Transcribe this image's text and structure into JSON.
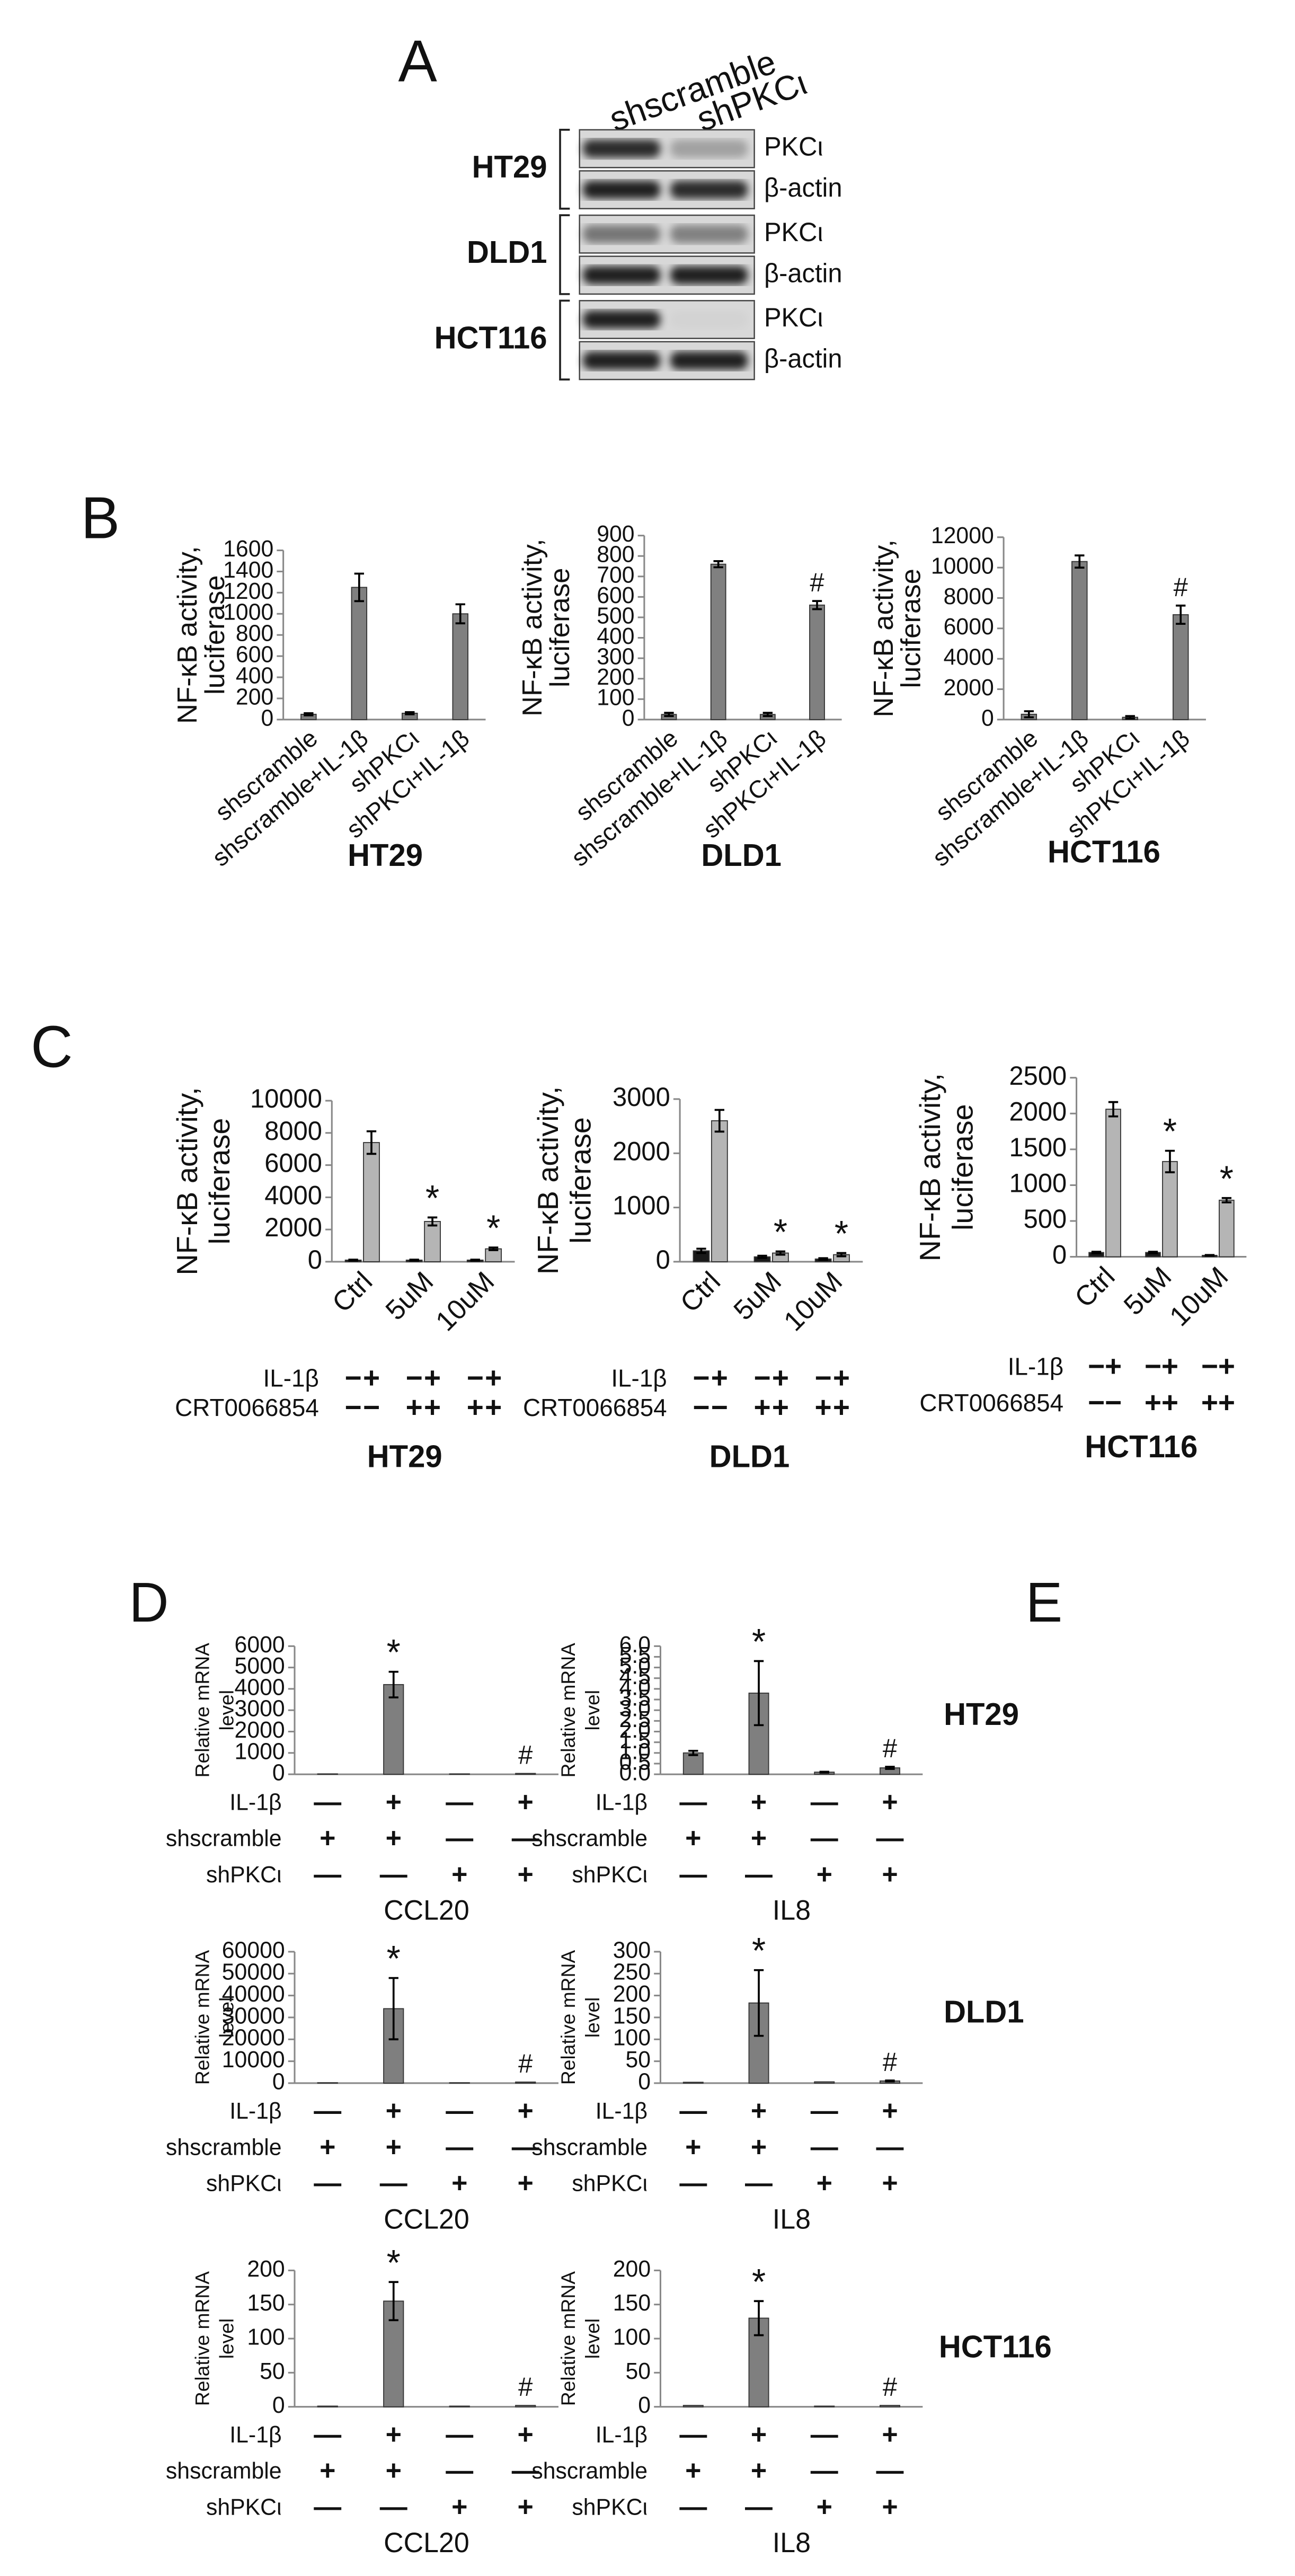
{
  "panel_labels": [
    "A",
    "B",
    "C",
    "D",
    "E"
  ],
  "blot": {
    "lanes": [
      "shscramble",
      "shPKCι"
    ],
    "cell_lines": [
      {
        "name": "HT29",
        "bands": [
          "PKCι",
          "β-actin"
        ]
      },
      {
        "name": "DLD1",
        "bands": [
          "PKCι",
          "β-actin"
        ]
      },
      {
        "name": "HCT116",
        "bands": [
          "PKCι",
          "β-actin"
        ]
      }
    ]
  },
  "panel_d_row_labels": [
    "HT29",
    "DLD1",
    "HCT116"
  ],
  "chart_data": [
    {
      "type": "bar",
      "title": "HT29",
      "y_label": [
        "NF-κB activity,",
        "luciferase"
      ],
      "categories": [
        "shscramble",
        "shscramble+IL-1β",
        "shPKCι",
        "shPKCι+IL-1β"
      ],
      "values": [
        50,
        1250,
        60,
        1000
      ],
      "errors": [
        10,
        130,
        10,
        90
      ],
      "color": "#808080",
      "ylim": [
        0,
        1600
      ],
      "yticks": [
        0,
        200,
        400,
        600,
        800,
        1000,
        1200,
        1400,
        1600
      ]
    },
    {
      "type": "bar",
      "title": "DLD1",
      "y_label": [
        "NF-κB activity,",
        "luciferase"
      ],
      "categories": [
        "shscramble",
        "shscramble+IL-1β",
        "shPKCι",
        "shPKCι+IL-1β"
      ],
      "values": [
        25,
        760,
        25,
        560
      ],
      "errors": [
        8,
        15,
        8,
        20
      ],
      "annotations": [
        null,
        null,
        null,
        "#"
      ],
      "color": "#808080",
      "ylim": [
        0,
        900
      ],
      "yticks": [
        0,
        100,
        200,
        300,
        400,
        500,
        600,
        700,
        800,
        900
      ]
    },
    {
      "type": "bar",
      "title": "HCT116",
      "y_label": [
        "NF-κB activity,",
        "luciferase"
      ],
      "categories": [
        "shscramble",
        "shscramble+IL-1β",
        "shPKCι",
        "shPKCι+IL-1β"
      ],
      "values": [
        350,
        10400,
        150,
        6900
      ],
      "errors": [
        200,
        400,
        80,
        600
      ],
      "annotations": [
        null,
        null,
        null,
        "#"
      ],
      "color": "#808080",
      "ylim": [
        0,
        12000
      ],
      "yticks": [
        0,
        2000,
        4000,
        6000,
        8000,
        10000,
        12000
      ]
    },
    {
      "type": "bar",
      "title": "HT29",
      "y_label": [
        "NF-κB activity,",
        "luciferase"
      ],
      "categories": [
        "Ctrl",
        "5uM",
        "10uM"
      ],
      "series": [
        {
          "color": "#1a1a1a",
          "values": [
            100,
            100,
            100
          ],
          "errors": [
            30,
            30,
            30
          ]
        },
        {
          "color": "#b5b5b5",
          "values": [
            7400,
            2500,
            800
          ],
          "errors": [
            700,
            250,
            80
          ],
          "annotations": [
            null,
            "*",
            "*"
          ]
        }
      ],
      "treatments": [
        {
          "label": "IL-1β",
          "marks": [
            "−",
            "+",
            "−",
            "+",
            "−",
            "+"
          ]
        },
        {
          "label": "CRT0066854",
          "marks": [
            "−",
            "−",
            "+",
            "+",
            "+",
            "+"
          ]
        }
      ],
      "ylim": [
        0,
        10000
      ],
      "yticks": [
        0,
        2000,
        4000,
        6000,
        8000,
        10000
      ]
    },
    {
      "type": "bar",
      "title": "DLD1",
      "y_label": [
        "NF-κB activity,",
        "luciferase"
      ],
      "categories": [
        "Ctrl",
        "5uM",
        "10uM"
      ],
      "series": [
        {
          "color": "#1a1a1a",
          "values": [
            200,
            90,
            50
          ],
          "errors": [
            40,
            20,
            15
          ]
        },
        {
          "color": "#b5b5b5",
          "values": [
            2600,
            160,
            130
          ],
          "errors": [
            200,
            30,
            30
          ],
          "annotations": [
            null,
            "*",
            "*"
          ]
        }
      ],
      "treatments": [
        {
          "label": "IL-1β",
          "marks": [
            "−",
            "+",
            "−",
            "+",
            "−",
            "+"
          ]
        },
        {
          "label": "CRT0066854",
          "marks": [
            "−",
            "−",
            "+",
            "+",
            "+",
            "+"
          ]
        }
      ],
      "ylim": [
        0,
        3000
      ],
      "yticks": [
        0,
        1000,
        2000,
        3000
      ]
    },
    {
      "type": "bar",
      "title": "HCT116",
      "y_label": [
        "NF-κB activity,",
        "luciferase"
      ],
      "categories": [
        "Ctrl",
        "5uM",
        "10uM"
      ],
      "series": [
        {
          "color": "#1a1a1a",
          "values": [
            60,
            60,
            20
          ],
          "errors": [
            10,
            10,
            5
          ]
        },
        {
          "color": "#b5b5b5",
          "values": [
            2060,
            1330,
            790
          ],
          "errors": [
            100,
            150,
            30
          ],
          "annotations": [
            null,
            "*",
            "*"
          ]
        }
      ],
      "treatments": [
        {
          "label": "IL-1β",
          "marks": [
            "−",
            "+",
            "−",
            "+",
            "−",
            "+"
          ]
        },
        {
          "label": "CRT0066854",
          "marks": [
            "−",
            "−",
            "+",
            "+",
            "+",
            "+"
          ]
        }
      ],
      "ylim": [
        0,
        2500
      ],
      "yticks": [
        0,
        500,
        1000,
        1500,
        2000,
        2500
      ]
    },
    {
      "type": "bar",
      "x_label": "CCL20",
      "y_label": [
        "Relative mRNA",
        "level"
      ],
      "values": [
        20,
        4200,
        20,
        40
      ],
      "errors": [
        0,
        600,
        0,
        0
      ],
      "annotations": [
        null,
        "*",
        null,
        "#"
      ],
      "color": "#7f7f7f",
      "treatments": [
        {
          "label": "IL-1β",
          "marks": [
            "—",
            "+",
            "—",
            "+"
          ]
        },
        {
          "label": "shscramble",
          "marks": [
            "+",
            "+",
            "—",
            "—"
          ]
        },
        {
          "label": "shPKCι",
          "marks": [
            "—",
            "—",
            "+",
            "+"
          ]
        }
      ],
      "ylim": [
        0,
        6000
      ],
      "yticks": [
        0,
        1000,
        2000,
        3000,
        4000,
        5000,
        6000
      ]
    },
    {
      "type": "bar",
      "x_label": "IL8",
      "y_label": [
        "Relative mRNA",
        "level"
      ],
      "values": [
        1.0,
        3.8,
        0.1,
        0.3
      ],
      "errors": [
        0.1,
        1.5,
        0.02,
        0.05
      ],
      "annotations": [
        null,
        "*",
        null,
        "#"
      ],
      "color": "#7f7f7f",
      "treatments": [
        {
          "label": "IL-1β",
          "marks": [
            "—",
            "+",
            "—",
            "+"
          ]
        },
        {
          "label": "shscramble",
          "marks": [
            "+",
            "+",
            "—",
            "—"
          ]
        },
        {
          "label": "shPKCι",
          "marks": [
            "—",
            "—",
            "+",
            "+"
          ]
        }
      ],
      "ylim": [
        0,
        6
      ],
      "yticks": [
        {
          "value": 0,
          "label": "0.0"
        },
        0.5,
        {
          "value": 1,
          "label": "1.0"
        },
        1.5,
        {
          "value": 2,
          "label": "2.0"
        },
        2.5,
        {
          "value": 3,
          "label": "3.0"
        },
        3.5,
        {
          "value": 4,
          "label": "4.0"
        },
        4.5,
        {
          "value": 5,
          "label": "5.0"
        },
        5.5,
        {
          "value": 6,
          "label": "6.0"
        }
      ]
    },
    {
      "type": "bar",
      "x_label": "CCL20",
      "y_label": [
        "Relative mRNA",
        "level"
      ],
      "values": [
        200,
        34000,
        200,
        500
      ],
      "errors": [
        0,
        14000,
        0,
        0
      ],
      "annotations": [
        null,
        "*",
        null,
        "#"
      ],
      "color": "#7f7f7f",
      "treatments": [
        {
          "label": "IL-1β",
          "marks": [
            "—",
            "+",
            "—",
            "+"
          ]
        },
        {
          "label": "shscramble",
          "marks": [
            "+",
            "+",
            "—",
            "—"
          ]
        },
        {
          "label": "shPKCι",
          "marks": [
            "—",
            "—",
            "+",
            "+"
          ]
        }
      ],
      "ylim": [
        0,
        60000
      ],
      "yticks": [
        0,
        10000,
        20000,
        30000,
        40000,
        50000,
        60000
      ]
    },
    {
      "type": "bar",
      "x_label": "IL8",
      "y_label": [
        "Relative mRNA",
        "level"
      ],
      "values": [
        2,
        183,
        3,
        5
      ],
      "errors": [
        0,
        75,
        0,
        1
      ],
      "annotations": [
        null,
        "*",
        null,
        "#"
      ],
      "color": "#7f7f7f",
      "treatments": [
        {
          "label": "IL-1β",
          "marks": [
            "—",
            "+",
            "—",
            "+"
          ]
        },
        {
          "label": "shscramble",
          "marks": [
            "+",
            "+",
            "—",
            "—"
          ]
        },
        {
          "label": "shPKCι",
          "marks": [
            "—",
            "—",
            "+",
            "+"
          ]
        }
      ],
      "ylim": [
        0,
        300
      ],
      "yticks": [
        0,
        50,
        100,
        150,
        200,
        250,
        300
      ]
    },
    {
      "type": "bar",
      "x_label": "CCL20",
      "y_label": [
        "Relative mRNA",
        "level"
      ],
      "values": [
        1,
        155,
        1,
        2
      ],
      "errors": [
        0,
        28,
        0,
        0
      ],
      "annotations": [
        null,
        "*",
        null,
        "#"
      ],
      "color": "#7f7f7f",
      "treatments": [
        {
          "label": "IL-1β",
          "marks": [
            "—",
            "+",
            "—",
            "+"
          ]
        },
        {
          "label": "shscramble",
          "marks": [
            "+",
            "+",
            "—",
            "—"
          ]
        },
        {
          "label": "shPKCι",
          "marks": [
            "—",
            "—",
            "+",
            "+"
          ]
        }
      ],
      "ylim": [
        0,
        200
      ],
      "yticks": [
        0,
        50,
        100,
        150,
        200
      ]
    },
    {
      "type": "bar",
      "x_label": "IL8",
      "y_label": [
        "Relative mRNA",
        "level"
      ],
      "values": [
        2,
        130,
        1,
        2
      ],
      "errors": [
        0,
        25,
        0,
        0
      ],
      "annotations": [
        null,
        "*",
        null,
        "#"
      ],
      "color": "#7f7f7f",
      "treatments": [
        {
          "label": "IL-1β",
          "marks": [
            "—",
            "+",
            "—",
            "+"
          ]
        },
        {
          "label": "shscramble",
          "marks": [
            "+",
            "+",
            "—",
            "—"
          ]
        },
        {
          "label": "shPKCι",
          "marks": [
            "—",
            "—",
            "+",
            "+"
          ]
        }
      ],
      "ylim": [
        0,
        200
      ],
      "yticks": [
        0,
        50,
        100,
        150,
        200
      ]
    }
  ]
}
